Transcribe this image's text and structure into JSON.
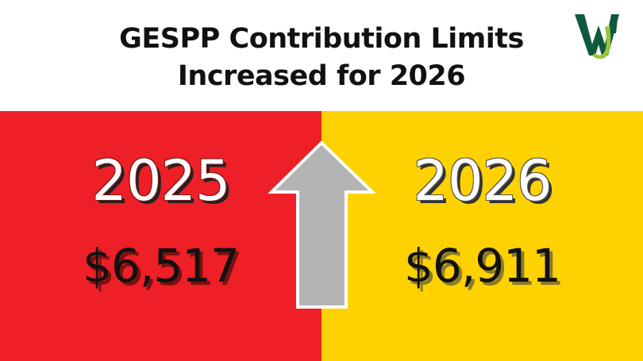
{
  "header": {
    "title_line1": "GESPP Contribution Limits",
    "title_line2": "Increased for 2026",
    "logo_icon": "wj-monogram-icon"
  },
  "colors": {
    "left_panel": "#ee1f26",
    "right_panel": "#fdd200",
    "arrow_fill": "#b4b4b4",
    "logo_green": "#0e5a3a",
    "logo_lime": "#9bc53d"
  },
  "left": {
    "year": "2025",
    "amount": "$6,517"
  },
  "right": {
    "year": "2026",
    "amount": "$6,911"
  },
  "arrow": {
    "icon": "up-arrow-icon"
  }
}
